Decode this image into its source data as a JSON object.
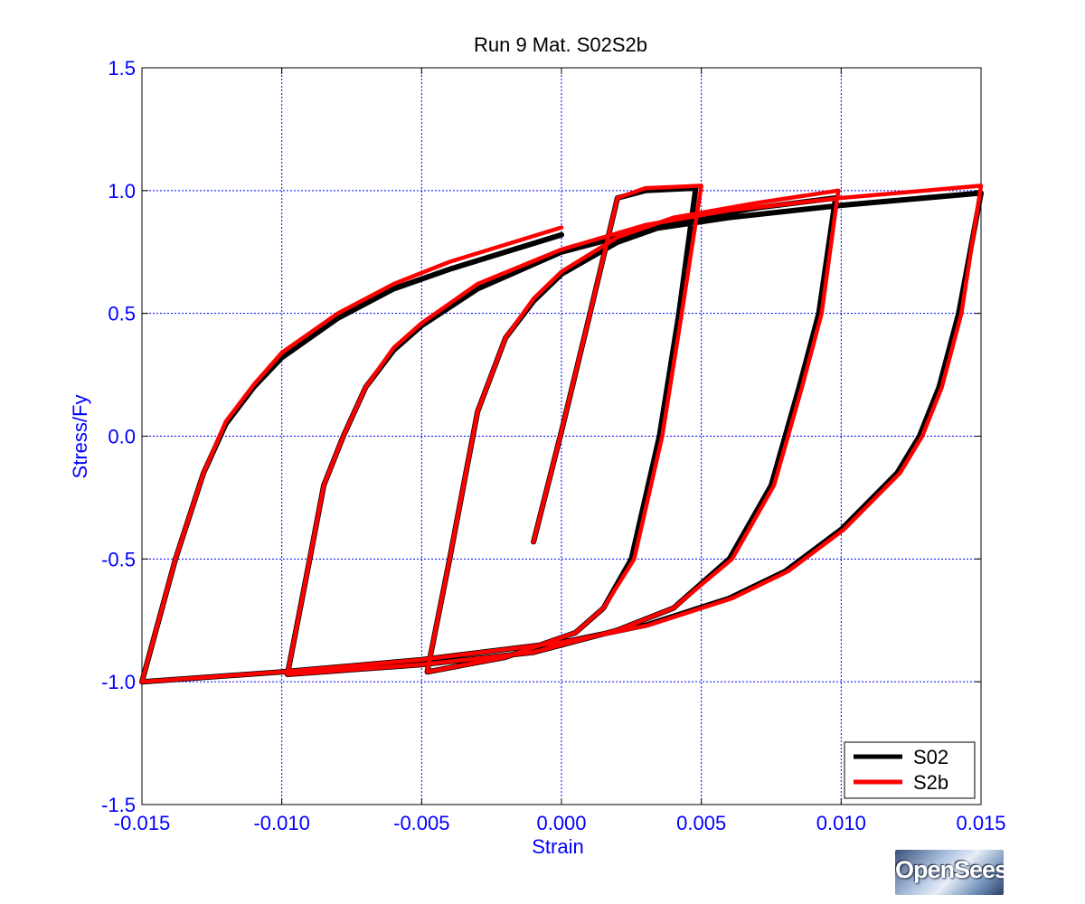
{
  "chart_data": {
    "type": "line",
    "title": "Run 9   Mat. S02S2b",
    "xlabel": "Strain",
    "ylabel": "Stress/Fy",
    "xlim": [
      -0.015,
      0.015
    ],
    "ylim": [
      -1.5,
      1.5
    ],
    "xticks": [
      -0.015,
      -0.01,
      -0.005,
      0.0,
      0.005,
      0.01,
      0.015
    ],
    "yticks": [
      -1.5,
      -1.0,
      -0.5,
      0.0,
      0.5,
      1.0,
      1.5
    ],
    "xtick_labels": [
      "-0.015",
      "-0.010",
      "-0.005",
      "0.000",
      "0.005",
      "0.010",
      "0.015"
    ],
    "ytick_labels": [
      "-1.5",
      "-1.0",
      "-0.5",
      "0.0",
      "0.5",
      "1.0",
      "1.5"
    ],
    "grid": true,
    "legend_position": "bottom-right",
    "series": [
      {
        "name": "S02",
        "color": "#000000",
        "points": [
          [
            -0.001,
            -0.43
          ],
          [
            0.0,
            0.02
          ],
          [
            0.001,
            0.49
          ],
          [
            0.002,
            0.97
          ],
          [
            0.003,
            1.0
          ],
          [
            0.0048,
            1.01
          ],
          [
            0.0042,
            0.5
          ],
          [
            0.0035,
            0.0
          ],
          [
            0.0025,
            -0.5
          ],
          [
            0.0015,
            -0.7
          ],
          [
            0.0005,
            -0.8
          ],
          [
            -0.002,
            -0.9
          ],
          [
            -0.0048,
            -0.96
          ],
          [
            -0.004,
            -0.5
          ],
          [
            -0.0035,
            -0.2
          ],
          [
            -0.003,
            0.1
          ],
          [
            -0.002,
            0.4
          ],
          [
            -0.001,
            0.55
          ],
          [
            0.0,
            0.66
          ],
          [
            0.002,
            0.79
          ],
          [
            0.004,
            0.87
          ],
          [
            0.007,
            0.93
          ],
          [
            0.0098,
            0.97
          ],
          [
            0.0092,
            0.5
          ],
          [
            0.0085,
            0.2
          ],
          [
            0.0075,
            -0.2
          ],
          [
            0.006,
            -0.5
          ],
          [
            0.004,
            -0.7
          ],
          [
            0.002,
            -0.79
          ],
          [
            -0.001,
            -0.88
          ],
          [
            -0.005,
            -0.93
          ],
          [
            -0.0098,
            -0.97
          ],
          [
            -0.009,
            -0.5
          ],
          [
            -0.0085,
            -0.2
          ],
          [
            -0.0078,
            0.0
          ],
          [
            -0.007,
            0.2
          ],
          [
            -0.006,
            0.35
          ],
          [
            -0.005,
            0.45
          ],
          [
            -0.003,
            0.6
          ],
          [
            0.0,
            0.75
          ],
          [
            0.003,
            0.84
          ],
          [
            0.006,
            0.89
          ],
          [
            0.01,
            0.94
          ],
          [
            0.015,
            0.99
          ],
          [
            0.0142,
            0.5
          ],
          [
            0.0135,
            0.2
          ],
          [
            0.0128,
            0.0
          ],
          [
            0.012,
            -0.15
          ],
          [
            0.01,
            -0.38
          ],
          [
            0.008,
            -0.55
          ],
          [
            0.006,
            -0.66
          ],
          [
            0.003,
            -0.77
          ],
          [
            0.0,
            -0.84
          ],
          [
            -0.005,
            -0.91
          ],
          [
            -0.01,
            -0.96
          ],
          [
            -0.015,
            -1.0
          ],
          [
            -0.0138,
            -0.5
          ],
          [
            -0.0128,
            -0.15
          ],
          [
            -0.012,
            0.05
          ],
          [
            -0.011,
            0.2
          ],
          [
            -0.01,
            0.32
          ],
          [
            -0.008,
            0.48
          ],
          [
            -0.006,
            0.6
          ],
          [
            -0.004,
            0.68
          ],
          [
            -0.002,
            0.75
          ],
          [
            0.0,
            0.82
          ]
        ]
      },
      {
        "name": "S2b",
        "color": "#ff0000",
        "points": [
          [
            -0.001,
            -0.43
          ],
          [
            0.0,
            0.02
          ],
          [
            0.001,
            0.49
          ],
          [
            0.002,
            0.97
          ],
          [
            0.003,
            1.01
          ],
          [
            0.005,
            1.02
          ],
          [
            0.0043,
            0.5
          ],
          [
            0.0036,
            0.0
          ],
          [
            0.0026,
            -0.5
          ],
          [
            0.0015,
            -0.7
          ],
          [
            0.0005,
            -0.8
          ],
          [
            -0.002,
            -0.9
          ],
          [
            -0.0048,
            -0.96
          ],
          [
            -0.004,
            -0.5
          ],
          [
            -0.0035,
            -0.2
          ],
          [
            -0.003,
            0.1
          ],
          [
            -0.002,
            0.4
          ],
          [
            -0.001,
            0.56
          ],
          [
            0.0,
            0.67
          ],
          [
            0.002,
            0.81
          ],
          [
            0.004,
            0.89
          ],
          [
            0.007,
            0.95
          ],
          [
            0.0099,
            1.0
          ],
          [
            0.0093,
            0.5
          ],
          [
            0.0086,
            0.2
          ],
          [
            0.0076,
            -0.2
          ],
          [
            0.0061,
            -0.5
          ],
          [
            0.004,
            -0.7
          ],
          [
            0.002,
            -0.79
          ],
          [
            -0.001,
            -0.88
          ],
          [
            -0.005,
            -0.93
          ],
          [
            -0.0098,
            -0.97
          ],
          [
            -0.009,
            -0.5
          ],
          [
            -0.0085,
            -0.2
          ],
          [
            -0.0078,
            0.0
          ],
          [
            -0.007,
            0.2
          ],
          [
            -0.006,
            0.36
          ],
          [
            -0.005,
            0.46
          ],
          [
            -0.003,
            0.62
          ],
          [
            0.0,
            0.76
          ],
          [
            0.003,
            0.86
          ],
          [
            0.006,
            0.92
          ],
          [
            0.01,
            0.97
          ],
          [
            0.015,
            1.02
          ],
          [
            0.0143,
            0.5
          ],
          [
            0.0136,
            0.2
          ],
          [
            0.0129,
            0.0
          ],
          [
            0.0121,
            -0.15
          ],
          [
            0.0101,
            -0.38
          ],
          [
            0.0081,
            -0.55
          ],
          [
            0.0061,
            -0.66
          ],
          [
            0.0031,
            -0.77
          ],
          [
            0.0,
            -0.84
          ],
          [
            -0.005,
            -0.91
          ],
          [
            -0.01,
            -0.96
          ],
          [
            -0.015,
            -1.0
          ],
          [
            -0.0138,
            -0.5
          ],
          [
            -0.0128,
            -0.15
          ],
          [
            -0.012,
            0.06
          ],
          [
            -0.011,
            0.21
          ],
          [
            -0.01,
            0.34
          ],
          [
            -0.008,
            0.5
          ],
          [
            -0.006,
            0.62
          ],
          [
            -0.004,
            0.71
          ],
          [
            -0.002,
            0.78
          ],
          [
            0.0,
            0.85
          ]
        ]
      }
    ]
  },
  "logo": {
    "text": "OpenSees"
  }
}
